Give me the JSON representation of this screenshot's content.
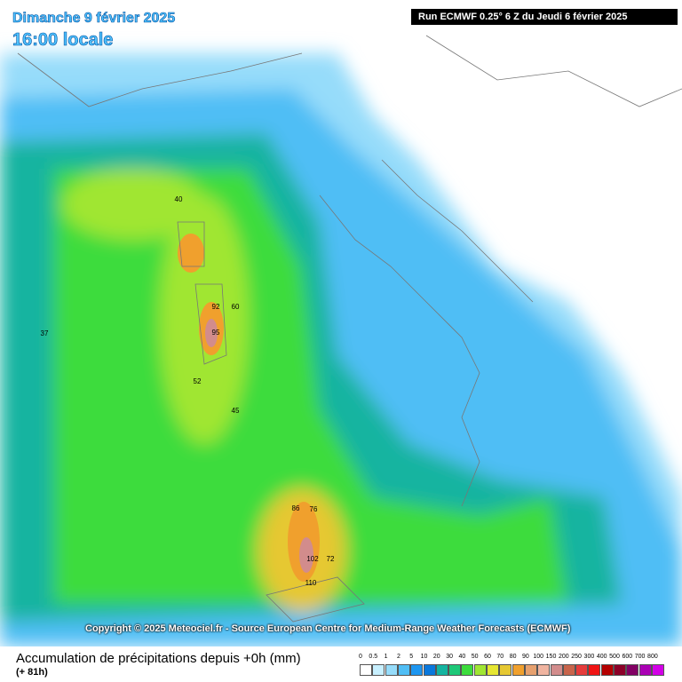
{
  "header": {
    "date": "Dimanche 9 février 2025",
    "time": "16:00 locale",
    "run": "Run ECMWF 0.25° 6 Z du Jeudi 6 février 2025"
  },
  "copyright": "Copyright © 2025 Meteociel.fr - Source European Centre for Medium-Range Weather Forecasts (ECMWF)",
  "footer": {
    "title": "Accumulation de précipitations depuis +0h (mm)",
    "lead": "(+ 81h)"
  },
  "legend": {
    "labels": [
      "0",
      "0.5",
      "1",
      "2",
      "5",
      "10",
      "20",
      "30",
      "40",
      "50",
      "60",
      "70",
      "80",
      "90",
      "100",
      "150",
      "200",
      "250",
      "300",
      "400",
      "500",
      "600",
      "700",
      "800"
    ],
    "colors": [
      "#ffffff",
      "#c8f0ff",
      "#96dcfa",
      "#50bef5",
      "#1e96f0",
      "#0a78dc",
      "#14b4a0",
      "#1ec878",
      "#3cdc3c",
      "#a0e632",
      "#e6e632",
      "#e6c832",
      "#f0a02d",
      "#e6a06e",
      "#f0b4a0",
      "#d28c8c",
      "#c8644b",
      "#e63c3c",
      "#f01414",
      "#b40000",
      "#8c0028",
      "#820064",
      "#aa00b4",
      "#d200e6"
    ]
  },
  "map_values": [
    "92",
    "95",
    "86",
    "102",
    "110",
    "72",
    "76",
    "52",
    "60",
    "40",
    "45",
    "37"
  ]
}
